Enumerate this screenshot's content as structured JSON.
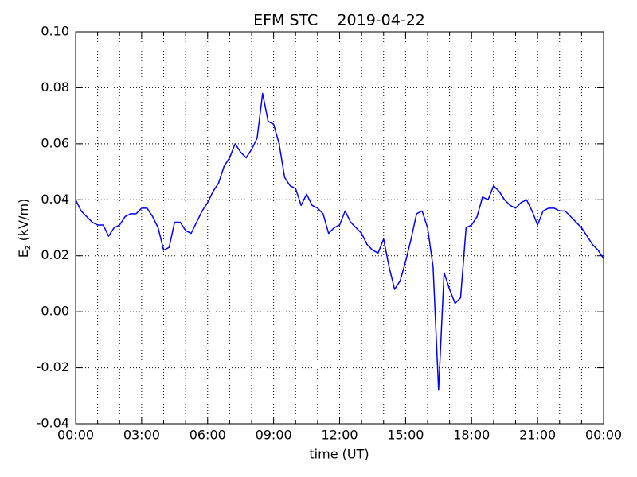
{
  "chart_data": {
    "type": "line",
    "title": "EFM STC    2019-04-22",
    "xlabel": "time (UT)",
    "ylabel": "E",
    "ylabel_subscript": "z",
    "ylabel_unit": "(kV/m)",
    "x": [
      0,
      0.25,
      0.5,
      0.75,
      1,
      1.25,
      1.5,
      1.75,
      2,
      2.25,
      2.5,
      2.75,
      3,
      3.25,
      3.5,
      3.75,
      4,
      4.25,
      4.5,
      4.75,
      5,
      5.25,
      5.5,
      5.75,
      6,
      6.25,
      6.5,
      6.75,
      7,
      7.25,
      7.5,
      7.75,
      8,
      8.25,
      8.5,
      8.75,
      9,
      9.25,
      9.5,
      9.75,
      10,
      10.25,
      10.5,
      10.75,
      11,
      11.25,
      11.5,
      11.75,
      12,
      12.25,
      12.5,
      12.75,
      13,
      13.25,
      13.5,
      13.75,
      14,
      14.25,
      14.5,
      14.75,
      15,
      15.25,
      15.5,
      15.75,
      16,
      16.25,
      16.5,
      16.75,
      17,
      17.25,
      17.5,
      17.75,
      18,
      18.25,
      18.5,
      18.75,
      19,
      19.25,
      19.5,
      19.75,
      20,
      20.25,
      20.5,
      20.75,
      21,
      21.25,
      21.5,
      21.75,
      22,
      22.25,
      22.5,
      22.75,
      23,
      23.25,
      23.5,
      23.75,
      24
    ],
    "series": [
      {
        "name": "Ez",
        "color": "#0000ff",
        "values": [
          0.04,
          0.036,
          0.034,
          0.032,
          0.031,
          0.031,
          0.027,
          0.03,
          0.031,
          0.034,
          0.035,
          0.035,
          0.037,
          0.037,
          0.034,
          0.03,
          0.022,
          0.023,
          0.032,
          0.032,
          0.029,
          0.028,
          0.032,
          0.036,
          0.039,
          0.043,
          0.046,
          0.052,
          0.055,
          0.06,
          0.057,
          0.055,
          0.058,
          0.062,
          0.078,
          0.068,
          0.067,
          0.06,
          0.048,
          0.045,
          0.044,
          0.038,
          0.042,
          0.038,
          0.037,
          0.035,
          0.028,
          0.03,
          0.031,
          0.036,
          0.032,
          0.03,
          0.028,
          0.024,
          0.022,
          0.021,
          0.026,
          0.016,
          0.008,
          0.011,
          0.018,
          0.026,
          0.035,
          0.036,
          0.03,
          0.016,
          -0.028,
          0.014,
          0.008,
          0.003,
          0.005,
          0.03,
          0.031,
          0.034,
          0.041,
          0.04,
          0.045,
          0.043,
          0.04,
          0.038,
          0.037,
          0.039,
          0.04,
          0.036,
          0.031,
          0.036,
          0.037,
          0.037,
          0.036,
          0.036,
          0.034,
          0.032,
          0.03,
          0.027,
          0.024,
          0.022,
          0.019
        ]
      }
    ],
    "xlim": [
      0,
      24
    ],
    "xticks": [
      {
        "value": 0,
        "label": "00:00"
      },
      {
        "value": 3,
        "label": "03:00"
      },
      {
        "value": 6,
        "label": "06:00"
      },
      {
        "value": 9,
        "label": "09:00"
      },
      {
        "value": 12,
        "label": "12:00"
      },
      {
        "value": 15,
        "label": "15:00"
      },
      {
        "value": 18,
        "label": "18:00"
      },
      {
        "value": 21,
        "label": "21:00"
      },
      {
        "value": 24,
        "label": "00:00"
      }
    ],
    "x_minor_ticks": [
      1,
      2,
      4,
      5,
      7,
      8,
      10,
      11,
      13,
      14,
      16,
      17,
      19,
      20,
      22,
      23
    ],
    "ylim": [
      -0.04,
      0.1
    ],
    "yticks": [
      -0.04,
      -0.02,
      {
        "value": 0,
        "label": "0.00"
      },
      0.02,
      0.04,
      0.06,
      0.08,
      {
        "value": 0.1,
        "label": "0.10"
      }
    ],
    "grid": true
  }
}
